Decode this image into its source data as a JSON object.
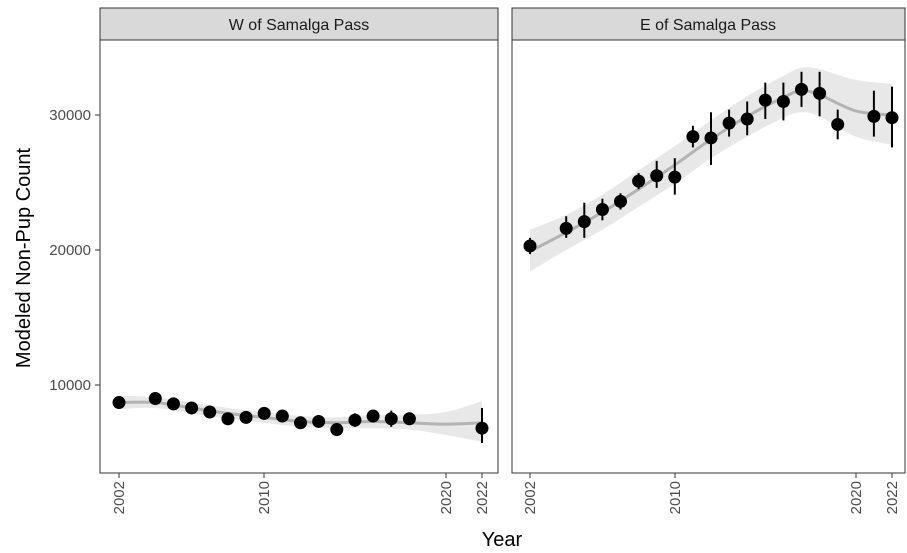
{
  "chart_data": {
    "type": "scatter",
    "xlabel": "Year",
    "ylabel": "Modeled Non-Pup Count",
    "xlim": [
      2002,
      2022
    ],
    "ylim": [
      4000,
      34500
    ],
    "x_ticks": [
      "2002",
      "2010",
      "2020",
      "2022"
    ],
    "y_ticks": [
      "10000",
      "20000",
      "30000"
    ],
    "grid": false,
    "panels": [
      {
        "title": "W of Samalga Pass",
        "points": [
          {
            "x": 2002,
            "y": 8700,
            "lo": 8300,
            "hi": 9100
          },
          {
            "x": 2004,
            "y": 9000,
            "lo": 8600,
            "hi": 9400
          },
          {
            "x": 2005,
            "y": 8600,
            "lo": 8200,
            "hi": 9000
          },
          {
            "x": 2006,
            "y": 8300,
            "lo": 7900,
            "hi": 8700
          },
          {
            "x": 2007,
            "y": 8000,
            "lo": 7600,
            "hi": 8400
          },
          {
            "x": 2008,
            "y": 7500,
            "lo": 7100,
            "hi": 7900
          },
          {
            "x": 2009,
            "y": 7600,
            "lo": 7200,
            "hi": 8000
          },
          {
            "x": 2010,
            "y": 7900,
            "lo": 7500,
            "hi": 8300
          },
          {
            "x": 2011,
            "y": 7700,
            "lo": 7300,
            "hi": 8100
          },
          {
            "x": 2012,
            "y": 7200,
            "lo": 6800,
            "hi": 7600
          },
          {
            "x": 2013,
            "y": 7300,
            "lo": 6900,
            "hi": 7700
          },
          {
            "x": 2014,
            "y": 6700,
            "lo": 6300,
            "hi": 7100
          },
          {
            "x": 2015,
            "y": 7400,
            "lo": 6900,
            "hi": 7900
          },
          {
            "x": 2016,
            "y": 7700,
            "lo": 7300,
            "hi": 8100
          },
          {
            "x": 2017,
            "y": 7500,
            "lo": 6900,
            "hi": 8100
          },
          {
            "x": 2018,
            "y": 7500,
            "lo": 7100,
            "hi": 7900
          },
          {
            "x": 2022,
            "y": 6800,
            "lo": 5700,
            "hi": 8300
          }
        ],
        "trend": [
          {
            "x": 2002,
            "y": 8700,
            "lo": 8200,
            "hi": 9200
          },
          {
            "x": 2004,
            "y": 8700,
            "lo": 8300,
            "hi": 9100
          },
          {
            "x": 2006,
            "y": 8300,
            "lo": 7900,
            "hi": 8700
          },
          {
            "x": 2008,
            "y": 7900,
            "lo": 7500,
            "hi": 8300
          },
          {
            "x": 2010,
            "y": 7600,
            "lo": 7200,
            "hi": 8000
          },
          {
            "x": 2012,
            "y": 7300,
            "lo": 6900,
            "hi": 7700
          },
          {
            "x": 2014,
            "y": 7200,
            "lo": 6800,
            "hi": 7600
          },
          {
            "x": 2016,
            "y": 7300,
            "lo": 6800,
            "hi": 7800
          },
          {
            "x": 2018,
            "y": 7200,
            "lo": 6700,
            "hi": 7800
          },
          {
            "x": 2020,
            "y": 7100,
            "lo": 6300,
            "hi": 8000
          },
          {
            "x": 2022,
            "y": 7200,
            "lo": 5800,
            "hi": 8800
          }
        ]
      },
      {
        "title": "E of Samalga Pass",
        "points": [
          {
            "x": 2002,
            "y": 20300,
            "lo": 19700,
            "hi": 20900
          },
          {
            "x": 2004,
            "y": 21600,
            "lo": 20900,
            "hi": 22500
          },
          {
            "x": 2005,
            "y": 22100,
            "lo": 20900,
            "hi": 23500
          },
          {
            "x": 2006,
            "y": 23000,
            "lo": 22200,
            "hi": 23800
          },
          {
            "x": 2007,
            "y": 23600,
            "lo": 23000,
            "hi": 24200
          },
          {
            "x": 2008,
            "y": 25100,
            "lo": 24500,
            "hi": 25700
          },
          {
            "x": 2009,
            "y": 25500,
            "lo": 24600,
            "hi": 26600
          },
          {
            "x": 2010,
            "y": 25400,
            "lo": 24100,
            "hi": 26800
          },
          {
            "x": 2011,
            "y": 28400,
            "lo": 27600,
            "hi": 29200
          },
          {
            "x": 2012,
            "y": 28300,
            "lo": 26300,
            "hi": 30200
          },
          {
            "x": 2013,
            "y": 29400,
            "lo": 28400,
            "hi": 30400
          },
          {
            "x": 2014,
            "y": 29700,
            "lo": 28500,
            "hi": 31000
          },
          {
            "x": 2015,
            "y": 31100,
            "lo": 29700,
            "hi": 32400
          },
          {
            "x": 2016,
            "y": 31000,
            "lo": 29600,
            "hi": 32400
          },
          {
            "x": 2017,
            "y": 31900,
            "lo": 30600,
            "hi": 33200
          },
          {
            "x": 2018,
            "y": 31600,
            "lo": 29900,
            "hi": 33200
          },
          {
            "x": 2019,
            "y": 29300,
            "lo": 28200,
            "hi": 30400
          },
          {
            "x": 2021,
            "y": 29900,
            "lo": 28400,
            "hi": 31800
          },
          {
            "x": 2022,
            "y": 29800,
            "lo": 27600,
            "hi": 32100
          }
        ],
        "trend": [
          {
            "x": 2002,
            "y": 19900,
            "lo": 18400,
            "hi": 21500
          },
          {
            "x": 2004,
            "y": 21300,
            "lo": 20000,
            "hi": 22600
          },
          {
            "x": 2006,
            "y": 22800,
            "lo": 21500,
            "hi": 24100
          },
          {
            "x": 2008,
            "y": 24500,
            "lo": 23200,
            "hi": 25900
          },
          {
            "x": 2010,
            "y": 26300,
            "lo": 24900,
            "hi": 27700
          },
          {
            "x": 2012,
            "y": 28200,
            "lo": 26800,
            "hi": 29600
          },
          {
            "x": 2014,
            "y": 29900,
            "lo": 28400,
            "hi": 31400
          },
          {
            "x": 2016,
            "y": 31300,
            "lo": 29800,
            "hi": 32900
          },
          {
            "x": 2017,
            "y": 31800,
            "lo": 30200,
            "hi": 33500
          },
          {
            "x": 2018,
            "y": 31500,
            "lo": 29900,
            "hi": 33400
          },
          {
            "x": 2020,
            "y": 30300,
            "lo": 28400,
            "hi": 32600
          },
          {
            "x": 2022,
            "y": 30000,
            "lo": 27800,
            "hi": 32300
          }
        ]
      }
    ]
  }
}
